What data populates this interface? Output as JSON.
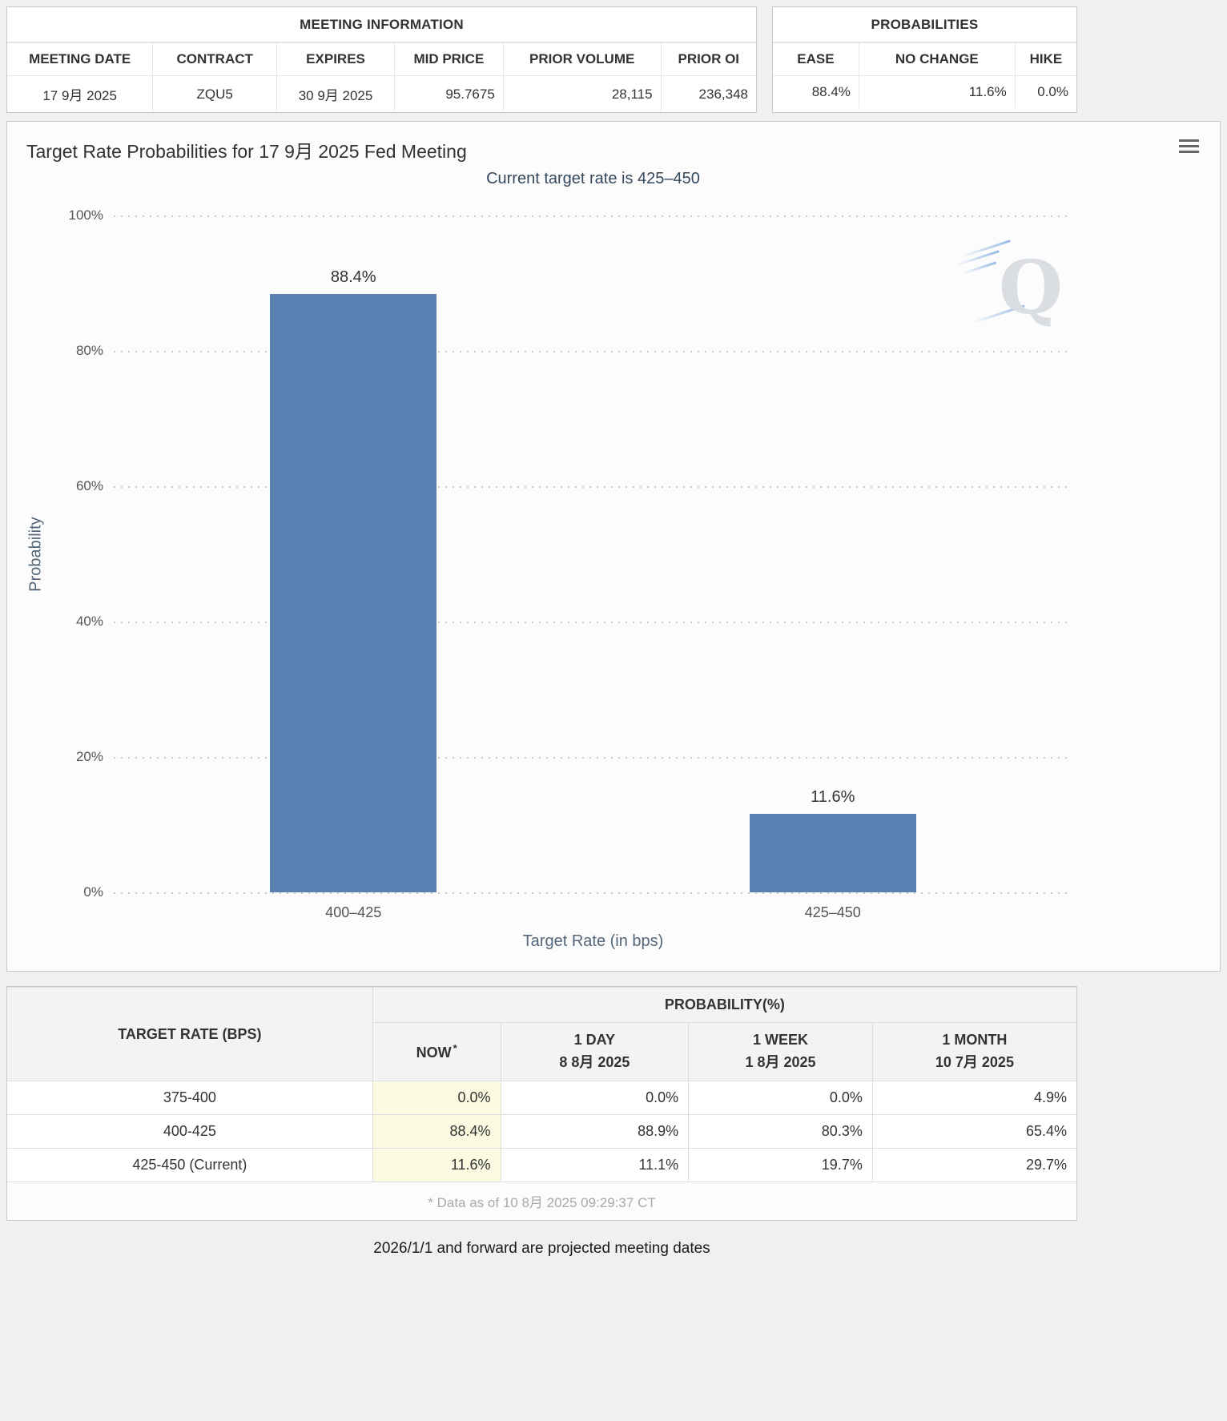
{
  "colors": {
    "bar": "#5b80b2",
    "now_column_highlight": "#fafbe0",
    "subtitle_text": "#34495e"
  },
  "meeting_info": {
    "title": "MEETING INFORMATION",
    "headers": [
      "MEETING DATE",
      "CONTRACT",
      "EXPIRES",
      "MID PRICE",
      "PRIOR VOLUME",
      "PRIOR OI"
    ],
    "values": [
      "17 9月 2025",
      "ZQU5",
      "30 9月 2025",
      "95.7675",
      "28,115",
      "236,348"
    ]
  },
  "probabilities_panel": {
    "title": "PROBABILITIES",
    "headers": [
      "EASE",
      "NO CHANGE",
      "HIKE"
    ],
    "values": [
      "88.4%",
      "11.6%",
      "0.0%"
    ]
  },
  "chart": {
    "title": "Target Rate Probabilities for 17 9月 2025 Fed Meeting",
    "subtitle": "Current target rate is 425–450",
    "ylabel": "Probability",
    "xlabel": "Target Rate (in bps)",
    "yticks": [
      "0%",
      "20%",
      "40%",
      "60%",
      "80%",
      "100%"
    ],
    "menu_icon": "hamburger-icon",
    "watermark_letter": "Q"
  },
  "chart_data": {
    "type": "bar",
    "categories": [
      "400–425",
      "425–450"
    ],
    "values": [
      88.4,
      11.6
    ],
    "labels": [
      "88.4%",
      "11.6%"
    ],
    "title": "Target Rate Probabilities for 17 9月 2025 Fed Meeting",
    "subtitle": "Current target rate is 425–450",
    "xlabel": "Target Rate (in bps)",
    "ylabel": "Probability",
    "ylim": [
      0,
      100
    ],
    "grid": "horizontal-dotted",
    "legend": "none",
    "bar_color": "#5b80b2"
  },
  "history_table": {
    "left_header": "TARGET RATE (BPS)",
    "group_header": "PROBABILITY(%)",
    "columns": [
      {
        "line1": "NOW",
        "sup": "*",
        "line2": ""
      },
      {
        "line1": "1 DAY",
        "line2": "8 8月 2025"
      },
      {
        "line1": "1 WEEK",
        "line2": "1 8月 2025"
      },
      {
        "line1": "1 MONTH",
        "line2": "10 7月 2025"
      }
    ],
    "rows": [
      {
        "rate": "375-400",
        "values": [
          "0.0%",
          "0.0%",
          "0.0%",
          "4.9%"
        ]
      },
      {
        "rate": "400-425",
        "values": [
          "88.4%",
          "88.9%",
          "80.3%",
          "65.4%"
        ]
      },
      {
        "rate": "425-450 (Current)",
        "values": [
          "11.6%",
          "11.1%",
          "19.7%",
          "29.7%"
        ]
      }
    ],
    "footnote": "* Data as of 10 8月 2025 09:29:37 CT"
  },
  "footer_note": "2026/1/1 and forward are projected meeting dates"
}
